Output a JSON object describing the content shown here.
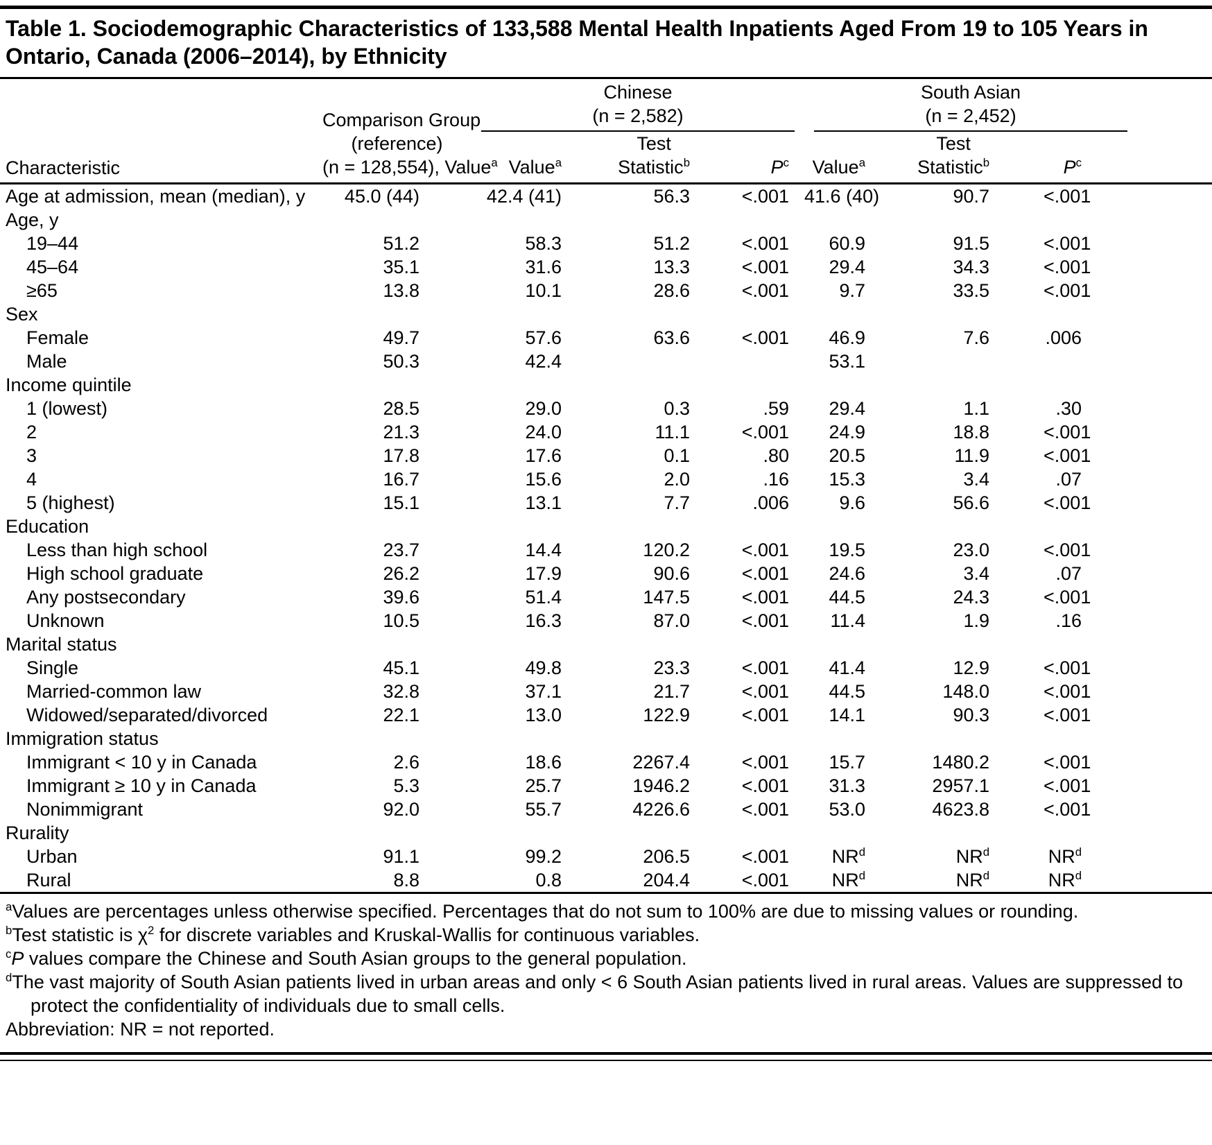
{
  "title": "Table 1. Sociodemographic Characteristics of 133,588 Mental Health Inpatients Aged From 19 to 105 Years in Ontario, Canada (2006–2014), by Ethnicity",
  "table": {
    "header": {
      "characteristic": "Characteristic",
      "comparison_lines": [
        "Comparison Group",
        "(reference)",
        "(n = 128,554), Value^a"
      ],
      "groups": [
        {
          "id": "chinese",
          "title_lines": [
            "Chinese",
            "(n = 2,582)"
          ],
          "subcols": [
            [
              "Value^a"
            ],
            [
              "Test",
              "Statistic^b"
            ],
            [
              "*P*^c"
            ]
          ]
        },
        {
          "id": "south-asian",
          "title_lines": [
            "South Asian",
            "(n = 2,452)"
          ],
          "subcols": [
            [
              "Value^a"
            ],
            [
              "Test",
              "Statistic^b"
            ],
            [
              "*P*^c"
            ]
          ]
        }
      ]
    },
    "rows": [
      {
        "label": "Age at admission, mean (median), y",
        "cells": [
          "45.0 (44)",
          "42.4 (41)",
          "56.3",
          "<.001",
          "41.6 (40)",
          "90.7",
          "<.001"
        ]
      },
      {
        "label": "Age, y",
        "section": true
      },
      {
        "label": "19–44",
        "indent": true,
        "cells": [
          "51.2",
          "58.3",
          "51.2",
          "<.001",
          "60.9",
          "91.5",
          "<.001"
        ]
      },
      {
        "label": "45–64",
        "indent": true,
        "cells": [
          "35.1",
          "31.6",
          "13.3",
          "<.001",
          "29.4",
          "34.3",
          "<.001"
        ]
      },
      {
        "label": "≥65",
        "indent": true,
        "cells": [
          "13.8",
          "10.1",
          "28.6",
          "<.001",
          "9.7",
          "33.5",
          "<.001"
        ]
      },
      {
        "label": "Sex",
        "section": true
      },
      {
        "label": "Female",
        "indent": true,
        "cells": [
          "49.7",
          "57.6",
          "63.6",
          "<.001",
          "46.9",
          "7.6",
          ".006"
        ]
      },
      {
        "label": "Male",
        "indent": true,
        "cells": [
          "50.3",
          "42.4",
          "",
          "",
          "53.1",
          "",
          ""
        ]
      },
      {
        "label": "Income quintile",
        "section": true
      },
      {
        "label": "1 (lowest)",
        "indent": true,
        "cells": [
          "28.5",
          "29.0",
          "0.3",
          ".59",
          "29.4",
          "1.1",
          ".30"
        ]
      },
      {
        "label": "2",
        "indent": true,
        "cells": [
          "21.3",
          "24.0",
          "11.1",
          "<.001",
          "24.9",
          "18.8",
          "<.001"
        ]
      },
      {
        "label": "3",
        "indent": true,
        "cells": [
          "17.8",
          "17.6",
          "0.1",
          ".80",
          "20.5",
          "11.9",
          "<.001"
        ]
      },
      {
        "label": "4",
        "indent": true,
        "cells": [
          "16.7",
          "15.6",
          "2.0",
          ".16",
          "15.3",
          "3.4",
          ".07"
        ]
      },
      {
        "label": "5 (highest)",
        "indent": true,
        "cells": [
          "15.1",
          "13.1",
          "7.7",
          ".006",
          "9.6",
          "56.6",
          "<.001"
        ]
      },
      {
        "label": "Education",
        "section": true
      },
      {
        "label": "Less than high school",
        "indent": true,
        "cells": [
          "23.7",
          "14.4",
          "120.2",
          "<.001",
          "19.5",
          "23.0",
          "<.001"
        ]
      },
      {
        "label": "High school graduate",
        "indent": true,
        "cells": [
          "26.2",
          "17.9",
          "90.6",
          "<.001",
          "24.6",
          "3.4",
          ".07"
        ]
      },
      {
        "label": "Any postsecondary",
        "indent": true,
        "cells": [
          "39.6",
          "51.4",
          "147.5",
          "<.001",
          "44.5",
          "24.3",
          "<.001"
        ]
      },
      {
        "label": "Unknown",
        "indent": true,
        "cells": [
          "10.5",
          "16.3",
          "87.0",
          "<.001",
          "11.4",
          "1.9",
          ".16"
        ]
      },
      {
        "label": "Marital status",
        "section": true
      },
      {
        "label": "Single",
        "indent": true,
        "cells": [
          "45.1",
          "49.8",
          "23.3",
          "<.001",
          "41.4",
          "12.9",
          "<.001"
        ]
      },
      {
        "label": "Married-common law",
        "indent": true,
        "cells": [
          "32.8",
          "37.1",
          "21.7",
          "<.001",
          "44.5",
          "148.0",
          "<.001"
        ]
      },
      {
        "label": "Widowed/separated/divorced",
        "indent": true,
        "cells": [
          "22.1",
          "13.0",
          "122.9",
          "<.001",
          "14.1",
          "90.3",
          "<.001"
        ]
      },
      {
        "label": "Immigration status",
        "section": true
      },
      {
        "label": "Immigrant < 10 y in Canada",
        "indent": true,
        "cells": [
          "2.6",
          "18.6",
          "2267.4",
          "<.001",
          "15.7",
          "1480.2",
          "<.001"
        ]
      },
      {
        "label": "Immigrant ≥ 10 y in Canada",
        "indent": true,
        "cells": [
          "5.3",
          "25.7",
          "1946.2",
          "<.001",
          "31.3",
          "2957.1",
          "<.001"
        ]
      },
      {
        "label": "Nonimmigrant",
        "indent": true,
        "cells": [
          "92.0",
          "55.7",
          "4226.6",
          "<.001",
          "53.0",
          "4623.8",
          "<.001"
        ]
      },
      {
        "label": "Rurality",
        "section": true
      },
      {
        "label": "Urban",
        "indent": true,
        "cells": [
          "91.1",
          "99.2",
          "206.5",
          "<.001",
          "NR^d",
          "NR^d",
          "NR^d"
        ]
      },
      {
        "label": "Rural",
        "indent": true,
        "cells": [
          "8.8",
          "0.8",
          "204.4",
          "<.001",
          "NR^d",
          "NR^d",
          "NR^d"
        ]
      }
    ]
  },
  "footnotes": [
    {
      "text": "^aValues are percentages unless otherwise specified. Percentages that do not sum to 100% are due to missing values or rounding."
    },
    {
      "text": "^bTest statistic is χ^2 for discrete variables and Kruskal-Wallis for continuous variables."
    },
    {
      "text": "^c*P* values compare the Chinese and South Asian groups to the general population."
    },
    {
      "text": "^dThe vast majority of South Asian patients lived in urban areas and only < 6 South Asian patients lived in rural areas. Values are suppressed to protect the confidentiality of individuals due to small cells.",
      "hang": true
    },
    {
      "text": "Abbreviation: NR = not reported."
    }
  ]
}
